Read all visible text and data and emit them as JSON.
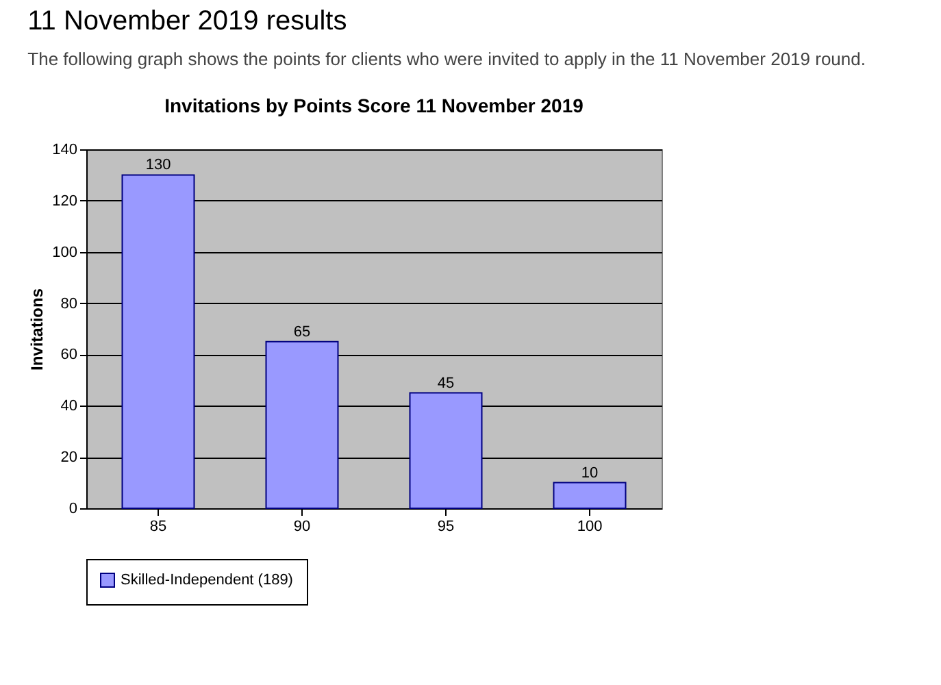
{
  "chart_data": {
    "type": "bar",
    "title": "Invitations by Points Score 11 November 2019",
    "annotations": [
      "11 November 2019 results",
      "The following graph shows the points for clients who were invited to apply in the 11 November 2019 round."
    ],
    "ylabel": "Invitations",
    "categories": [
      "85",
      "90",
      "95",
      "100"
    ],
    "series": [
      {
        "name": "Skilled-Independent (189)",
        "color": "#9999ff",
        "values": [
          130,
          65,
          45,
          10
        ]
      }
    ],
    "ylim": [
      0,
      140
    ],
    "yticks": [
      0,
      20,
      40,
      60,
      80,
      100,
      120,
      140
    ],
    "grid": "y",
    "legend": "bottom",
    "data_labels": true
  }
}
